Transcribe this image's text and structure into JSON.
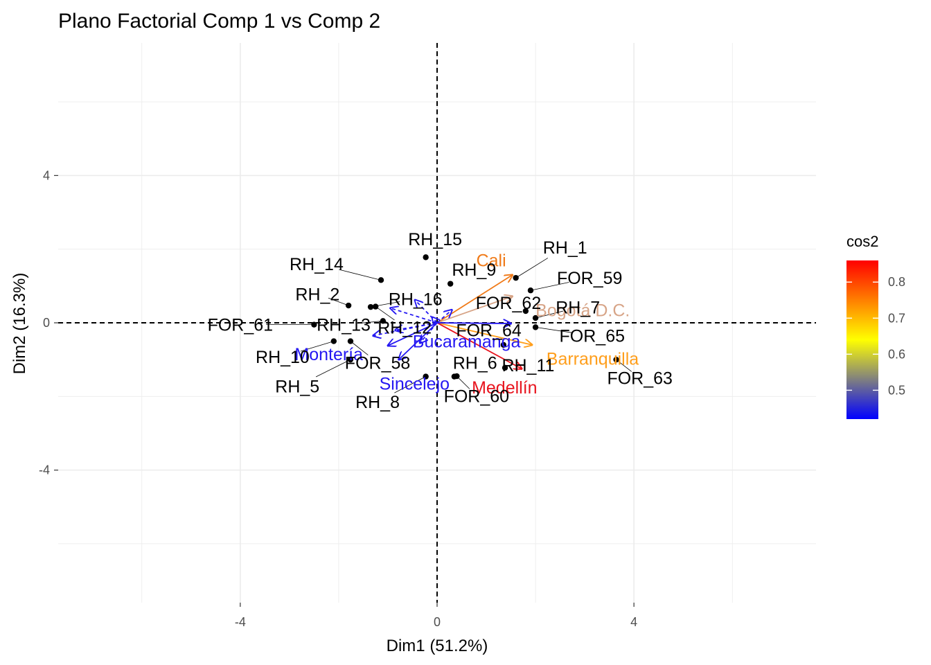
{
  "chart_data": {
    "type": "scatter",
    "title": "Plano Factorial Comp 1 vs Comp 2",
    "xlabel": "Dim1 (51.2%)",
    "ylabel": "Dim2 (16.3%)",
    "xlim": [
      -7.7,
      7.7
    ],
    "ylim": [
      -7.6,
      7.6
    ],
    "x_ticks": [
      -4,
      0,
      4
    ],
    "y_ticks": [
      -4,
      0,
      4
    ],
    "grid": true,
    "reference_lines": {
      "x": 0,
      "y": 0,
      "style": "dashed"
    },
    "individuals": [
      {
        "name": "RH_15",
        "x": -0.23,
        "y": 1.78,
        "lx": -0.04,
        "ly": 2.28
      },
      {
        "name": "RH_1",
        "x": 1.6,
        "y": 1.22,
        "lx": 2.6,
        "ly": 2.05
      },
      {
        "name": "RH_14",
        "x": -1.14,
        "y": 1.16,
        "lx": -2.45,
        "ly": 1.6
      },
      {
        "name": "RH_9",
        "x": 0.27,
        "y": 1.06,
        "lx": 0.75,
        "ly": 1.45
      },
      {
        "name": "FOR_59",
        "x": 1.9,
        "y": 0.88,
        "lx": 3.1,
        "ly": 1.22
      },
      {
        "name": "RH_2",
        "x": -1.8,
        "y": 0.47,
        "lx": -2.43,
        "ly": 0.78
      },
      {
        "name": "RH_16",
        "x": -1.35,
        "y": 0.43,
        "lx": -0.44,
        "ly": 0.65
      },
      {
        "name": "FOR_62",
        "x": 1.8,
        "y": 0.32,
        "lx": 1.45,
        "ly": 0.55
      },
      {
        "name": "RH_7",
        "x": 2.0,
        "y": 0.13,
        "lx": 2.86,
        "ly": 0.42
      },
      {
        "name": "RH_12",
        "x": -1.25,
        "y": 0.44,
        "lx": -0.66,
        "ly": -0.12
      },
      {
        "name": "FOR_61",
        "x": -2.5,
        "y": -0.05,
        "lx": -4.0,
        "ly": -0.05
      },
      {
        "name": "RH_13",
        "x": -1.1,
        "y": 0.05,
        "lx": -1.9,
        "ly": -0.05
      },
      {
        "name": "FOR_64",
        "x": 1.35,
        "y": -0.6,
        "lx": 1.05,
        "ly": -0.2
      },
      {
        "name": "FOR_65",
        "x": 2.0,
        "y": -0.12,
        "lx": 3.15,
        "ly": -0.35
      },
      {
        "name": "RH_10",
        "x": -2.1,
        "y": -0.5,
        "lx": -3.14,
        "ly": -0.92
      },
      {
        "name": "FOR_58",
        "x": -1.76,
        "y": -0.5,
        "lx": -1.21,
        "ly": -1.08
      },
      {
        "name": "RH_6",
        "x": 0.35,
        "y": -1.46,
        "lx": 0.77,
        "ly": -1.08
      },
      {
        "name": "RH_11",
        "x": 1.38,
        "y": -1.22,
        "lx": 1.85,
        "ly": -1.15
      },
      {
        "name": "FOR_63",
        "x": 3.64,
        "y": -1.0,
        "lx": 4.12,
        "ly": -1.5
      },
      {
        "name": "RH_5",
        "x": -1.76,
        "y": -1.0,
        "lx": -2.84,
        "ly": -1.72
      },
      {
        "name": "RH_8",
        "x": -0.23,
        "y": -1.46,
        "lx": -1.21,
        "ly": -2.14
      },
      {
        "name": "FOR_60",
        "x": 0.4,
        "y": -1.45,
        "lx": 0.8,
        "ly": -1.98
      }
    ],
    "variables": [
      {
        "name": "Cali",
        "x": 1.53,
        "y": 1.3,
        "cos2": 0.77,
        "color": "#f07a18",
        "lx": 1.1,
        "ly": 1.7
      },
      {
        "name": "Bogotá D.C.",
        "x": 1.53,
        "y": 0.72,
        "cos2": 0.55,
        "color": "#d7a487",
        "lx": 2.96,
        "ly": 0.35
      },
      {
        "name": "Barranquilla",
        "x": 1.93,
        "y": -0.6,
        "cos2": 0.7,
        "color": "#ff9e1b",
        "lx": 3.16,
        "ly": -0.97
      },
      {
        "name": "Medellín",
        "x": 1.72,
        "y": -1.25,
        "cos2": 0.86,
        "color": "#e8141e",
        "lx": 1.37,
        "ly": -1.75
      },
      {
        "name": "Bucaramanga",
        "x": 1.5,
        "y": -0.02,
        "cos2": 0.42,
        "color": "#2417f2",
        "lx": 0.6,
        "ly": -0.5
      },
      {
        "name": "Montería",
        "x": -1.0,
        "y": -0.62,
        "cos2": 0.42,
        "color": "#2417f2",
        "lx": -2.2,
        "ly": -0.85
      },
      {
        "name": "Sincelejo",
        "x": -0.78,
        "y": -1.0,
        "cos2": 0.42,
        "color": "#2417f2",
        "lx": -0.46,
        "ly": -1.65
      },
      {
        "name": "",
        "x": -0.95,
        "y": 0.4,
        "cos2": 0.42,
        "color": "#2417f2",
        "dashed": true
      },
      {
        "name": "",
        "x": -0.45,
        "y": 0.62,
        "cos2": 0.42,
        "color": "#2417f2",
        "dashed": true
      },
      {
        "name": "",
        "x": 0.3,
        "y": 0.35,
        "cos2": 0.42,
        "color": "#2417f2",
        "dashed": true
      },
      {
        "name": "",
        "x": -1.3,
        "y": -0.35,
        "cos2": 0.42,
        "color": "#2417f2",
        "dashed": true
      },
      {
        "name": "",
        "x": -0.85,
        "y": -0.2,
        "cos2": 0.42,
        "color": "#2417f2",
        "dashed": true
      },
      {
        "name": "",
        "x": -0.35,
        "y": -0.55,
        "cos2": 0.42,
        "color": "#2417f2",
        "dashed": true
      },
      {
        "name": "",
        "x": -0.1,
        "y": 0.15,
        "cos2": 0.42,
        "color": "#2417f2",
        "dashed": true
      }
    ],
    "legend": {
      "title": "cos2",
      "placement": "right",
      "range": [
        0.42,
        0.86
      ],
      "ticks": [
        0.5,
        0.6,
        0.7,
        0.8
      ],
      "tick_labels": [
        "0.5",
        "0.6",
        "0.7",
        "0.8"
      ],
      "gradient": [
        "#0000ff",
        "#ffff00",
        "#ff0000"
      ]
    }
  }
}
